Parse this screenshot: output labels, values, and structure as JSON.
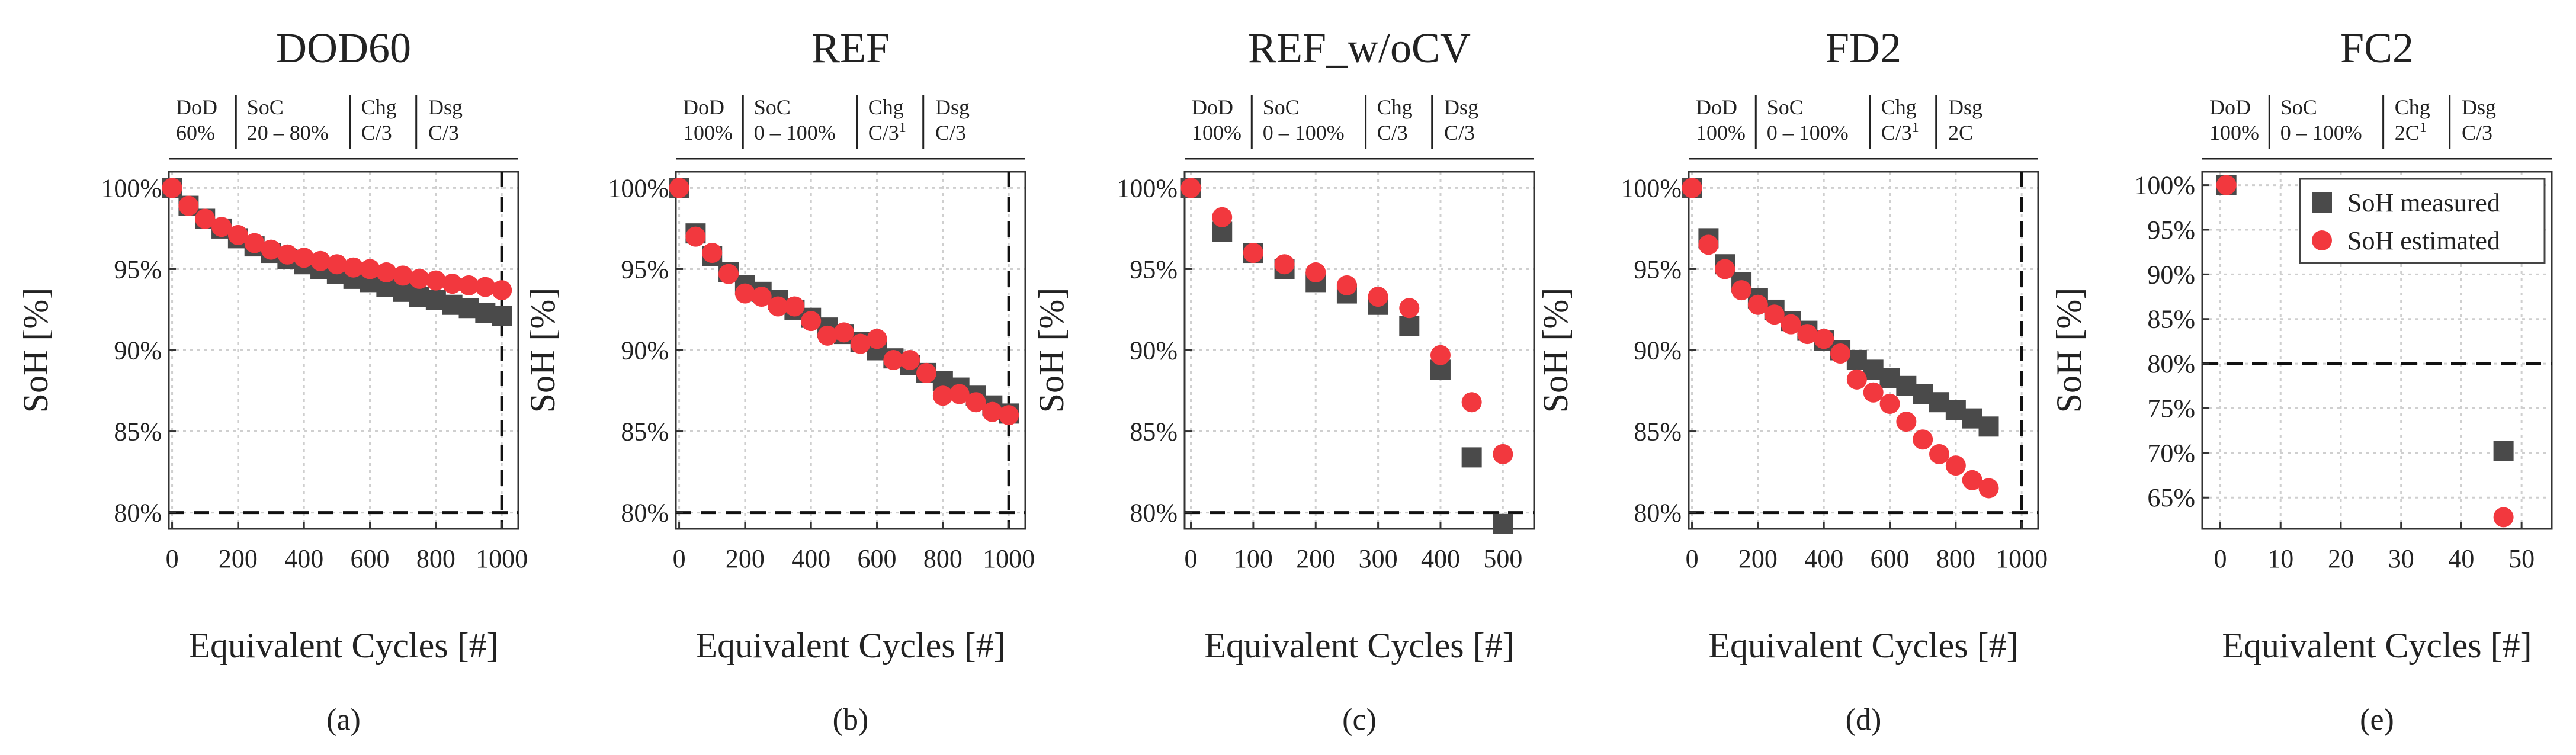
{
  "chart_data": [
    {
      "type": "scatter",
      "title": "DOD60",
      "panel_label": "(a)",
      "xlabel": "Equivalent Cycles [#]",
      "ylabel": "SoH [%]",
      "xlim": [
        -10,
        1050
      ],
      "ylim": [
        79,
        101
      ],
      "xticks": [
        0,
        200,
        400,
        600,
        800,
        1000
      ],
      "yticks": [
        80,
        85,
        90,
        95,
        100
      ],
      "ytick_format": "pct0",
      "hline": 80,
      "vline": 1000,
      "table": [
        {
          "head": "DoD",
          "val": "60%"
        },
        {
          "head": "SoC",
          "val": "20 – 80%"
        },
        {
          "head": "Chg",
          "val": "C/3"
        },
        {
          "head": "Dsg",
          "val": "C/3"
        }
      ],
      "series": [
        {
          "name": "SoH measured",
          "marker": "square",
          "x": [
            0,
            50,
            100,
            150,
            200,
            250,
            300,
            350,
            400,
            450,
            500,
            550,
            600,
            650,
            700,
            750,
            800,
            850,
            900,
            950,
            1000
          ],
          "y": [
            100,
            98.9,
            98.1,
            97.5,
            96.9,
            96.4,
            96.0,
            95.6,
            95.3,
            95.0,
            94.7,
            94.4,
            94.2,
            93.9,
            93.6,
            93.3,
            93.1,
            92.8,
            92.6,
            92.3,
            92.1
          ]
        },
        {
          "name": "SoH estimated",
          "marker": "circle",
          "x": [
            0,
            50,
            100,
            150,
            200,
            250,
            300,
            350,
            400,
            450,
            500,
            550,
            600,
            650,
            700,
            750,
            800,
            850,
            900,
            950,
            1000
          ],
          "y": [
            100,
            98.9,
            98.1,
            97.6,
            97.1,
            96.6,
            96.2,
            95.9,
            95.7,
            95.5,
            95.3,
            95.1,
            95.0,
            94.8,
            94.6,
            94.4,
            94.3,
            94.1,
            94.0,
            93.9,
            93.7
          ]
        }
      ]
    },
    {
      "type": "scatter",
      "title": "REF",
      "panel_label": "(b)",
      "xlabel": "Equivalent Cycles [#]",
      "ylabel": "SoH [%]",
      "xlim": [
        -10,
        1050
      ],
      "ylim": [
        79,
        101
      ],
      "xticks": [
        0,
        200,
        400,
        600,
        800,
        1000
      ],
      "yticks": [
        80,
        85,
        90,
        95,
        100
      ],
      "ytick_format": "pct0",
      "hline": 80,
      "vline": 1000,
      "table": [
        {
          "head": "DoD",
          "val": "100%"
        },
        {
          "head": "SoC",
          "val": "0 – 100%"
        },
        {
          "head": "Chg",
          "val": "C/3",
          "sup": "1"
        },
        {
          "head": "Dsg",
          "val": "C/3"
        }
      ],
      "series": [
        {
          "name": "SoH measured",
          "marker": "square",
          "x": [
            0,
            50,
            100,
            150,
            200,
            250,
            300,
            350,
            400,
            450,
            500,
            550,
            600,
            650,
            700,
            750,
            800,
            850,
            900,
            950,
            1000
          ],
          "y": [
            100,
            97.2,
            95.8,
            94.8,
            94.0,
            93.6,
            93.1,
            92.5,
            92.0,
            91.4,
            91.0,
            90.5,
            90.0,
            89.5,
            89.1,
            88.6,
            88.1,
            87.7,
            87.2,
            86.6,
            86.1
          ]
        },
        {
          "name": "SoH estimated",
          "marker": "circle",
          "x": [
            0,
            50,
            100,
            150,
            200,
            250,
            300,
            350,
            400,
            450,
            500,
            550,
            600,
            650,
            700,
            750,
            800,
            850,
            900,
            950,
            1000
          ],
          "y": [
            100,
            97.0,
            96.0,
            94.7,
            93.5,
            93.3,
            92.7,
            92.7,
            91.8,
            90.9,
            91.1,
            90.4,
            90.7,
            89.4,
            89.4,
            88.6,
            87.2,
            87.3,
            86.8,
            86.2,
            86.0
          ]
        }
      ]
    },
    {
      "type": "scatter",
      "title": "REF_w/oCV",
      "panel_label": "(c)",
      "xlabel": "Equivalent Cycles [#]",
      "ylabel": "SoH [%]",
      "xlim": [
        -10,
        550
      ],
      "ylim": [
        79,
        101
      ],
      "xticks": [
        0,
        100,
        200,
        300,
        400,
        500
      ],
      "yticks": [
        80,
        85,
        90,
        95,
        100
      ],
      "ytick_format": "pct0",
      "hline": 80,
      "vline": null,
      "table": [
        {
          "head": "DoD",
          "val": "100%"
        },
        {
          "head": "SoC",
          "val": "0 – 100%"
        },
        {
          "head": "Chg",
          "val": "C/3"
        },
        {
          "head": "Dsg",
          "val": "C/3"
        }
      ],
      "series": [
        {
          "name": "SoH measured",
          "marker": "square",
          "x": [
            0,
            50,
            100,
            150,
            200,
            250,
            300,
            350,
            400,
            450,
            500
          ],
          "y": [
            100,
            97.3,
            96.0,
            95.0,
            94.2,
            93.5,
            92.8,
            91.5,
            88.8,
            83.4,
            79.3
          ]
        },
        {
          "name": "SoH estimated",
          "marker": "circle",
          "x": [
            0,
            50,
            100,
            150,
            200,
            250,
            300,
            350,
            400,
            450,
            500
          ],
          "y": [
            100,
            98.2,
            96.0,
            95.3,
            94.8,
            94.0,
            93.3,
            92.6,
            89.7,
            86.8,
            83.6
          ]
        }
      ]
    },
    {
      "type": "scatter",
      "title": "FD2",
      "panel_label": "(d)",
      "xlabel": "Equivalent Cycles [#]",
      "ylabel": "SoH [%]",
      "xlim": [
        -10,
        1050
      ],
      "ylim": [
        79,
        101
      ],
      "xticks": [
        0,
        200,
        400,
        600,
        800,
        1000
      ],
      "yticks": [
        80,
        85,
        90,
        95,
        100
      ],
      "ytick_format": "pct0",
      "hline": 80,
      "vline": 1000,
      "table": [
        {
          "head": "DoD",
          "val": "100%"
        },
        {
          "head": "SoC",
          "val": "0 – 100%"
        },
        {
          "head": "Chg",
          "val": "C/3",
          "sup": "1"
        },
        {
          "head": "Dsg",
          "val": "2C"
        }
      ],
      "series": [
        {
          "name": "SoH measured",
          "marker": "square",
          "x": [
            0,
            50,
            100,
            150,
            200,
            250,
            300,
            350,
            400,
            450,
            500,
            550,
            600,
            650,
            700,
            750,
            800,
            850,
            900
          ],
          "y": [
            100,
            96.9,
            95.3,
            94.2,
            93.2,
            92.5,
            91.8,
            91.2,
            90.6,
            90.0,
            89.4,
            88.8,
            88.3,
            87.8,
            87.3,
            86.8,
            86.3,
            85.8,
            85.3
          ]
        },
        {
          "name": "SoH estimated",
          "marker": "circle",
          "x": [
            0,
            50,
            100,
            150,
            200,
            250,
            300,
            350,
            400,
            450,
            500,
            550,
            600,
            650,
            700,
            750,
            800,
            850,
            900
          ],
          "y": [
            100,
            96.5,
            95.0,
            93.7,
            92.8,
            92.2,
            91.6,
            91.0,
            90.7,
            89.8,
            88.2,
            87.4,
            86.7,
            85.6,
            84.5,
            83.6,
            82.9,
            82.0,
            81.5
          ]
        }
      ]
    },
    {
      "type": "scatter",
      "title": "FC2",
      "panel_label": "(e)",
      "xlabel": "Equivalent Cycles [#]",
      "ylabel": "SoH [%]",
      "xlim": [
        -3,
        55
      ],
      "ylim": [
        61.5,
        101.5
      ],
      "xticks": [
        0,
        10,
        20,
        30,
        40,
        50
      ],
      "yticks": [
        65,
        70,
        75,
        80,
        85,
        90,
        95,
        100
      ],
      "ytick_format": "pct0",
      "hline": 80,
      "vline": null,
      "legend": "top-right",
      "table": [
        {
          "head": "DoD",
          "val": "100%"
        },
        {
          "head": "SoC",
          "val": "0 – 100%"
        },
        {
          "head": "Chg",
          "val": "2C",
          "sup": "1"
        },
        {
          "head": "Dsg",
          "val": "C/3"
        }
      ],
      "series": [
        {
          "name": "SoH measured",
          "marker": "square",
          "x": [
            1,
            47
          ],
          "y": [
            100,
            70.2
          ]
        },
        {
          "name": "SoH estimated",
          "marker": "circle",
          "x": [
            1,
            47
          ],
          "y": [
            100,
            62.8
          ]
        }
      ]
    }
  ],
  "colors": {
    "measured": "#4a4a4a",
    "estimated": "#f2383e"
  }
}
